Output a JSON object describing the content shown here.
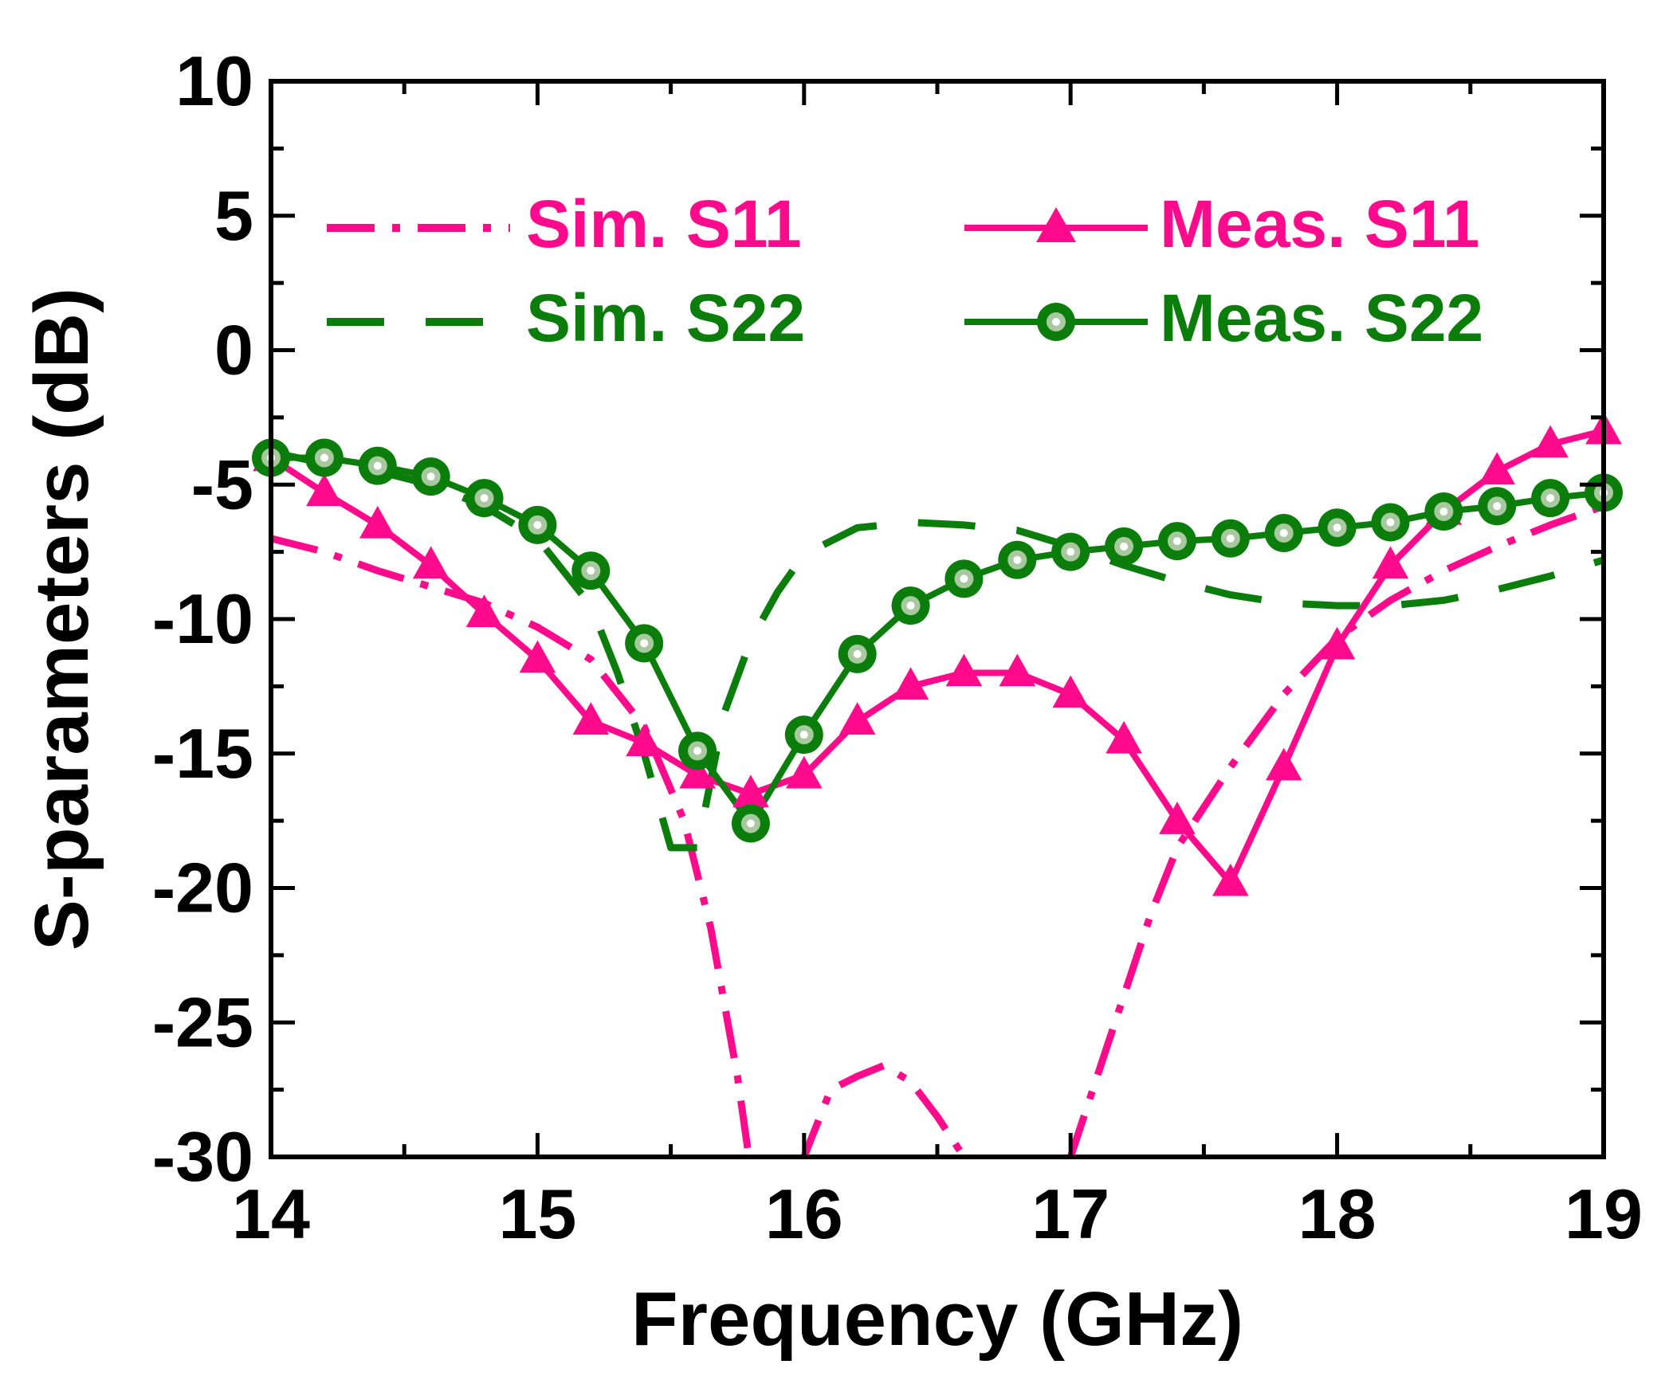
{
  "chart_data": {
    "type": "line",
    "xlabel": "Frequency (GHz)",
    "ylabel": "S-parameters (dB)",
    "xlim": [
      14,
      19
    ],
    "ylim": [
      -30,
      10
    ],
    "xticks": [
      14,
      15,
      16,
      17,
      18,
      19
    ],
    "yticks": [
      10,
      5,
      0,
      -5,
      -10,
      -15,
      -20,
      -25,
      -30
    ],
    "grid": false,
    "legend_position": "top",
    "colors": {
      "pink": "#ff0a8c",
      "green": "#0a7d0a"
    },
    "series": [
      {
        "name": "Sim. S11",
        "style": "dash-dot",
        "color": "#ff0a8c",
        "x": [
          14.0,
          14.2,
          14.4,
          14.6,
          14.8,
          15.0,
          15.2,
          15.4,
          15.55,
          15.65,
          15.75,
          15.8,
          15.85,
          15.95,
          16.0,
          16.1,
          16.2,
          16.3,
          16.4,
          16.5,
          16.6,
          16.7,
          16.8,
          16.9,
          17.0,
          17.1,
          17.2,
          17.3,
          17.4,
          17.6,
          17.8,
          18.0,
          18.2,
          18.4,
          18.6,
          18.8,
          19.0
        ],
        "y": [
          -7.0,
          -7.5,
          -8.2,
          -8.8,
          -9.4,
          -10.3,
          -11.5,
          -14.0,
          -17.5,
          -21.5,
          -27.0,
          -30.5,
          -34,
          -32,
          -30.0,
          -27.5,
          -27.0,
          -26.6,
          -27.2,
          -28.5,
          -30.0,
          -32,
          -33,
          -32,
          -30.0,
          -27.0,
          -24.0,
          -21.0,
          -18.5,
          -15.5,
          -12.8,
          -10.7,
          -9.3,
          -8.2,
          -7.3,
          -6.5,
          -5.8
        ]
      },
      {
        "name": "Sim. S22",
        "style": "long-dash",
        "color": "#0a7d0a",
        "x": [
          14.0,
          14.2,
          14.4,
          14.6,
          14.8,
          15.0,
          15.2,
          15.3,
          15.4,
          15.5,
          15.6,
          15.7,
          15.8,
          15.9,
          16.0,
          16.2,
          16.4,
          16.6,
          16.8,
          17.0,
          17.2,
          17.4,
          17.6,
          17.8,
          18.0,
          18.2,
          18.4,
          18.6,
          18.8,
          19.0
        ],
        "y": [
          -3.8,
          -4.2,
          -4.5,
          -5.0,
          -5.8,
          -7.0,
          -9.5,
          -12.0,
          -15.0,
          -18.5,
          -18.5,
          -13.5,
          -10.8,
          -9.0,
          -7.6,
          -6.6,
          -6.4,
          -6.5,
          -6.7,
          -7.3,
          -8.0,
          -8.6,
          -9.1,
          -9.4,
          -9.5,
          -9.5,
          -9.3,
          -8.9,
          -8.4,
          -7.8
        ]
      },
      {
        "name": "Meas. S11",
        "style": "solid-triangle",
        "color": "#ff0a8c",
        "x": [
          14.0,
          14.2,
          14.4,
          14.6,
          14.8,
          15.0,
          15.2,
          15.4,
          15.6,
          15.8,
          16.0,
          16.2,
          16.4,
          16.6,
          16.8,
          17.0,
          17.2,
          17.4,
          17.6,
          17.8,
          18.0,
          18.2,
          18.4,
          18.6,
          18.8,
          19.0
        ],
        "y": [
          -4.0,
          -5.3,
          -6.5,
          -8.0,
          -9.8,
          -11.5,
          -13.8,
          -14.6,
          -15.8,
          -16.5,
          -15.8,
          -13.8,
          -12.5,
          -12.0,
          -12.0,
          -12.8,
          -14.5,
          -17.5,
          -19.8,
          -15.5,
          -11.0,
          -8.0,
          -6.0,
          -4.5,
          -3.5,
          -3.0
        ]
      },
      {
        "name": "Meas. S22",
        "style": "solid-circle",
        "color": "#0a7d0a",
        "x": [
          14.0,
          14.2,
          14.4,
          14.6,
          14.8,
          15.0,
          15.2,
          15.4,
          15.6,
          15.8,
          16.0,
          16.2,
          16.4,
          16.6,
          16.8,
          17.0,
          17.2,
          17.4,
          17.6,
          17.8,
          18.0,
          18.2,
          18.4,
          18.6,
          18.8,
          19.0
        ],
        "y": [
          -4.0,
          -4.0,
          -4.3,
          -4.7,
          -5.5,
          -6.5,
          -8.2,
          -10.9,
          -14.9,
          -17.6,
          -14.3,
          -11.3,
          -9.5,
          -8.5,
          -7.8,
          -7.5,
          -7.3,
          -7.1,
          -7.0,
          -6.8,
          -6.6,
          -6.4,
          -6.0,
          -5.8,
          -5.5,
          -5.3
        ]
      }
    ]
  }
}
